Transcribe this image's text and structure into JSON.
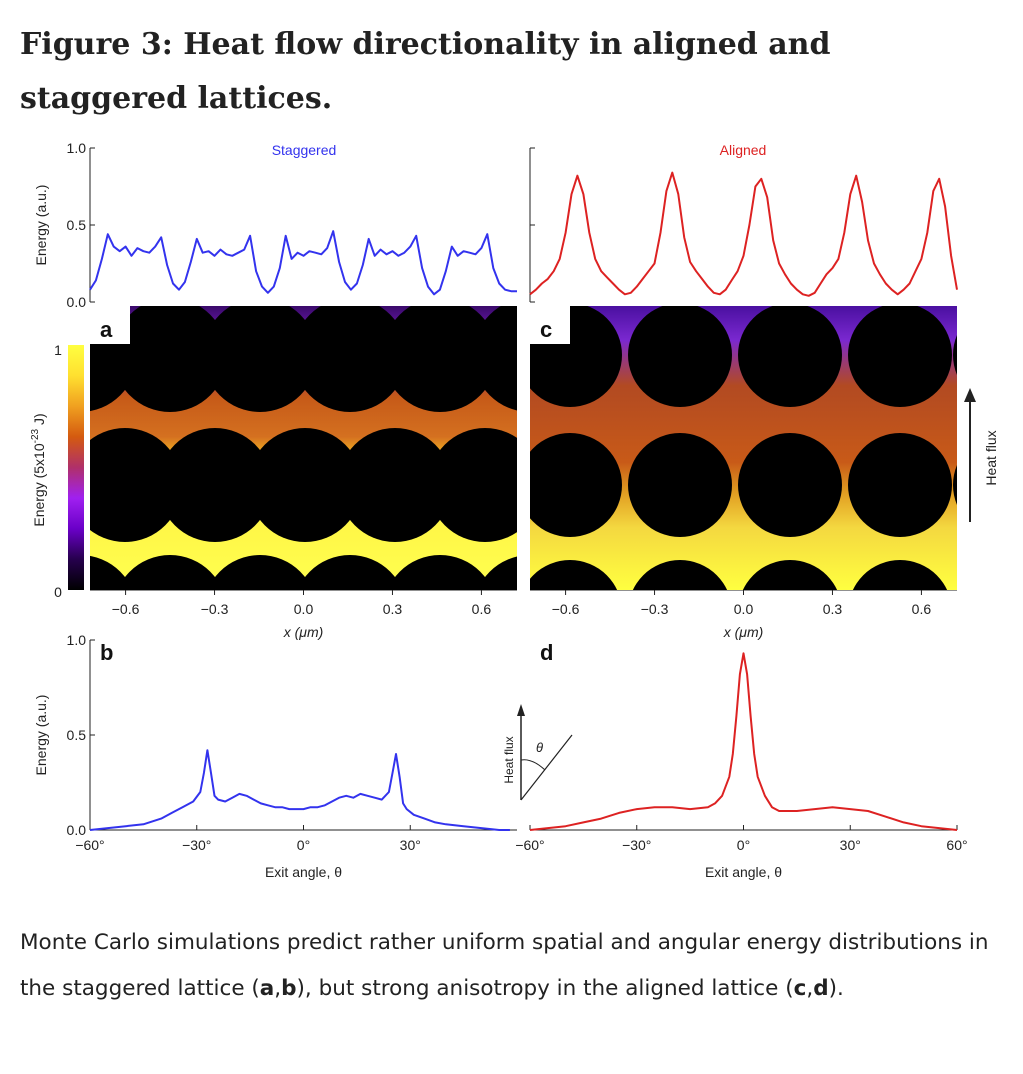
{
  "figure": {
    "title": "Figure 3: Heat flow directionality in aligned and staggered lattices.",
    "caption": {
      "text_1": "Monte Carlo simulations predict rather uniform spatial and angular energy distributions in the staggered lattice (",
      "bold_1": "a",
      "sep_1": ",",
      "bold_2": "b",
      "text_2": "), but strong anisotropy in the aligned lattice (",
      "bold_3": "c",
      "sep_2": ",",
      "bold_4": "d",
      "text_3": ")."
    }
  },
  "colors": {
    "staggered": "#3333ee",
    "aligned": "#dd2222",
    "colormap": [
      "#000000",
      "#26004d",
      "#6a00c8",
      "#a020f0",
      "#b0306a",
      "#d45a10",
      "#f0a020",
      "#ffe030",
      "#ffff40"
    ]
  },
  "chart_data": [
    {
      "type": "line",
      "panel": "top-left",
      "title": "Staggered",
      "ylabel": "Energy (a.u.)",
      "yticks": [
        "0.0",
        "0.5",
        "1.0"
      ],
      "ylim": [
        0,
        1
      ],
      "xlim": [
        -0.72,
        0.72
      ],
      "series_color_key": "staggered",
      "x": [
        -0.72,
        -0.7,
        -0.68,
        -0.66,
        -0.64,
        -0.62,
        -0.6,
        -0.58,
        -0.56,
        -0.54,
        -0.52,
        -0.5,
        -0.48,
        -0.46,
        -0.44,
        -0.42,
        -0.4,
        -0.38,
        -0.36,
        -0.34,
        -0.32,
        -0.3,
        -0.28,
        -0.26,
        -0.24,
        -0.22,
        -0.2,
        -0.18,
        -0.16,
        -0.14,
        -0.12,
        -0.1,
        -0.08,
        -0.06,
        -0.04,
        -0.02,
        0.0,
        0.02,
        0.04,
        0.06,
        0.08,
        0.1,
        0.12,
        0.14,
        0.16,
        0.18,
        0.2,
        0.22,
        0.24,
        0.26,
        0.28,
        0.3,
        0.32,
        0.34,
        0.36,
        0.38,
        0.4,
        0.42,
        0.44,
        0.46,
        0.48,
        0.5,
        0.52,
        0.54,
        0.56,
        0.58,
        0.6,
        0.62,
        0.64,
        0.66,
        0.68,
        0.7,
        0.72
      ],
      "y": [
        0.08,
        0.14,
        0.28,
        0.44,
        0.36,
        0.33,
        0.36,
        0.3,
        0.35,
        0.33,
        0.32,
        0.36,
        0.42,
        0.24,
        0.12,
        0.08,
        0.13,
        0.26,
        0.41,
        0.32,
        0.33,
        0.3,
        0.34,
        0.31,
        0.3,
        0.32,
        0.34,
        0.43,
        0.2,
        0.1,
        0.06,
        0.1,
        0.22,
        0.43,
        0.28,
        0.32,
        0.3,
        0.33,
        0.32,
        0.31,
        0.35,
        0.46,
        0.26,
        0.13,
        0.08,
        0.12,
        0.24,
        0.41,
        0.3,
        0.34,
        0.31,
        0.33,
        0.3,
        0.32,
        0.36,
        0.43,
        0.22,
        0.1,
        0.05,
        0.08,
        0.2,
        0.36,
        0.3,
        0.33,
        0.32,
        0.31,
        0.35,
        0.44,
        0.22,
        0.12,
        0.08,
        0.07,
        0.07
      ]
    },
    {
      "type": "line",
      "panel": "top-right",
      "title": "Aligned",
      "ylim": [
        0,
        1
      ],
      "xlim": [
        -0.72,
        0.72
      ],
      "series_color_key": "aligned",
      "x": [
        -0.72,
        -0.7,
        -0.68,
        -0.66,
        -0.64,
        -0.62,
        -0.6,
        -0.58,
        -0.56,
        -0.54,
        -0.52,
        -0.5,
        -0.48,
        -0.46,
        -0.44,
        -0.42,
        -0.4,
        -0.38,
        -0.36,
        -0.34,
        -0.32,
        -0.3,
        -0.28,
        -0.26,
        -0.24,
        -0.22,
        -0.2,
        -0.18,
        -0.16,
        -0.14,
        -0.12,
        -0.1,
        -0.08,
        -0.06,
        -0.04,
        -0.02,
        0.0,
        0.02,
        0.04,
        0.06,
        0.08,
        0.1,
        0.12,
        0.14,
        0.16,
        0.18,
        0.2,
        0.22,
        0.24,
        0.26,
        0.28,
        0.3,
        0.32,
        0.34,
        0.36,
        0.38,
        0.4,
        0.42,
        0.44,
        0.46,
        0.48,
        0.5,
        0.52,
        0.54,
        0.56,
        0.58,
        0.6,
        0.62,
        0.64,
        0.66,
        0.68,
        0.7,
        0.72
      ],
      "y": [
        0.05,
        0.08,
        0.12,
        0.15,
        0.2,
        0.28,
        0.45,
        0.7,
        0.82,
        0.7,
        0.45,
        0.28,
        0.2,
        0.16,
        0.12,
        0.08,
        0.05,
        0.06,
        0.1,
        0.15,
        0.2,
        0.25,
        0.45,
        0.72,
        0.84,
        0.7,
        0.42,
        0.26,
        0.2,
        0.15,
        0.1,
        0.06,
        0.05,
        0.08,
        0.14,
        0.2,
        0.3,
        0.5,
        0.75,
        0.8,
        0.68,
        0.4,
        0.25,
        0.18,
        0.12,
        0.08,
        0.05,
        0.04,
        0.06,
        0.12,
        0.18,
        0.22,
        0.28,
        0.45,
        0.7,
        0.82,
        0.65,
        0.4,
        0.25,
        0.18,
        0.12,
        0.08,
        0.05,
        0.08,
        0.12,
        0.2,
        0.28,
        0.45,
        0.72,
        0.8,
        0.62,
        0.3,
        0.08
      ]
    },
    {
      "type": "heatmap",
      "panel": "a",
      "label": "a",
      "ylabel": "Energy (5x10",
      "ylabel_exp": "-23",
      "ylabel_unit": " J)",
      "colorbar_ticks": [
        "0",
        "1"
      ],
      "xlabel": "x (μm)",
      "xticks": [
        "−0.6",
        "−0.3",
        "0.0",
        "0.3",
        "0.6"
      ],
      "xtick_values": [
        -0.6,
        -0.3,
        0.0,
        0.3,
        0.6
      ],
      "xlim": [
        -0.72,
        0.72
      ],
      "lattice": "staggered"
    },
    {
      "type": "heatmap",
      "panel": "c",
      "label": "c",
      "side_label": "Heat flux",
      "xlabel": "x (μm)",
      "xticks": [
        "−0.6",
        "−0.3",
        "0.0",
        "0.3",
        "0.6"
      ],
      "xtick_values": [
        -0.6,
        -0.3,
        0.0,
        0.3,
        0.6
      ],
      "xlim": [
        -0.72,
        0.72
      ],
      "lattice": "aligned"
    },
    {
      "type": "line",
      "panel": "b",
      "label": "b",
      "ylabel": "Energy (a.u.)",
      "yticks": [
        "0.0",
        "0.5",
        "1.0"
      ],
      "ylim": [
        0,
        1
      ],
      "xlabel": "Exit angle, θ",
      "xticks": [
        "−60°",
        "−30°",
        "0°",
        "30°"
      ],
      "xtick_values": [
        -60,
        -30,
        0,
        30
      ],
      "xlim": [
        -60,
        60
      ],
      "series_color_key": "staggered",
      "x": [
        -60,
        -55,
        -50,
        -45,
        -40,
        -37,
        -34,
        -31,
        -29,
        -28,
        -27,
        -26,
        -25,
        -24,
        -22,
        -20,
        -18,
        -16,
        -14,
        -12,
        -10,
        -8,
        -6,
        -4,
        -2,
        0,
        2,
        4,
        6,
        8,
        10,
        12,
        14,
        16,
        18,
        20,
        22,
        24,
        25,
        26,
        27,
        28,
        29,
        31,
        34,
        37,
        40,
        45,
        50,
        55,
        58
      ],
      "y": [
        0.0,
        0.01,
        0.02,
        0.03,
        0.06,
        0.09,
        0.12,
        0.15,
        0.2,
        0.3,
        0.42,
        0.3,
        0.18,
        0.16,
        0.15,
        0.17,
        0.19,
        0.18,
        0.16,
        0.14,
        0.13,
        0.12,
        0.12,
        0.11,
        0.11,
        0.11,
        0.12,
        0.12,
        0.13,
        0.15,
        0.17,
        0.18,
        0.17,
        0.19,
        0.18,
        0.17,
        0.16,
        0.2,
        0.3,
        0.4,
        0.28,
        0.14,
        0.11,
        0.08,
        0.06,
        0.04,
        0.03,
        0.02,
        0.01,
        0.0,
        0.0
      ]
    },
    {
      "type": "line",
      "panel": "d",
      "label": "d",
      "inset_label": "Heat flux",
      "inset_angle_label": "θ",
      "xlabel": "Exit angle, θ",
      "xticks": [
        "−60°",
        "−30°",
        "0°",
        "30°",
        "60°"
      ],
      "xtick_values": [
        -60,
        -30,
        0,
        30,
        60
      ],
      "xlim": [
        -60,
        60
      ],
      "ylim": [
        0,
        1
      ],
      "series_color_key": "aligned",
      "x": [
        -60,
        -55,
        -50,
        -45,
        -40,
        -35,
        -30,
        -25,
        -20,
        -15,
        -10,
        -8,
        -6,
        -4,
        -3,
        -2,
        -1,
        0,
        1,
        2,
        3,
        4,
        6,
        8,
        10,
        15,
        20,
        25,
        30,
        35,
        40,
        45,
        50,
        55,
        60
      ],
      "y": [
        0.0,
        0.01,
        0.02,
        0.04,
        0.06,
        0.09,
        0.11,
        0.12,
        0.12,
        0.11,
        0.12,
        0.14,
        0.18,
        0.28,
        0.4,
        0.6,
        0.82,
        0.93,
        0.82,
        0.6,
        0.4,
        0.28,
        0.18,
        0.12,
        0.1,
        0.1,
        0.11,
        0.12,
        0.11,
        0.1,
        0.07,
        0.04,
        0.02,
        0.01,
        0.0
      ]
    }
  ]
}
